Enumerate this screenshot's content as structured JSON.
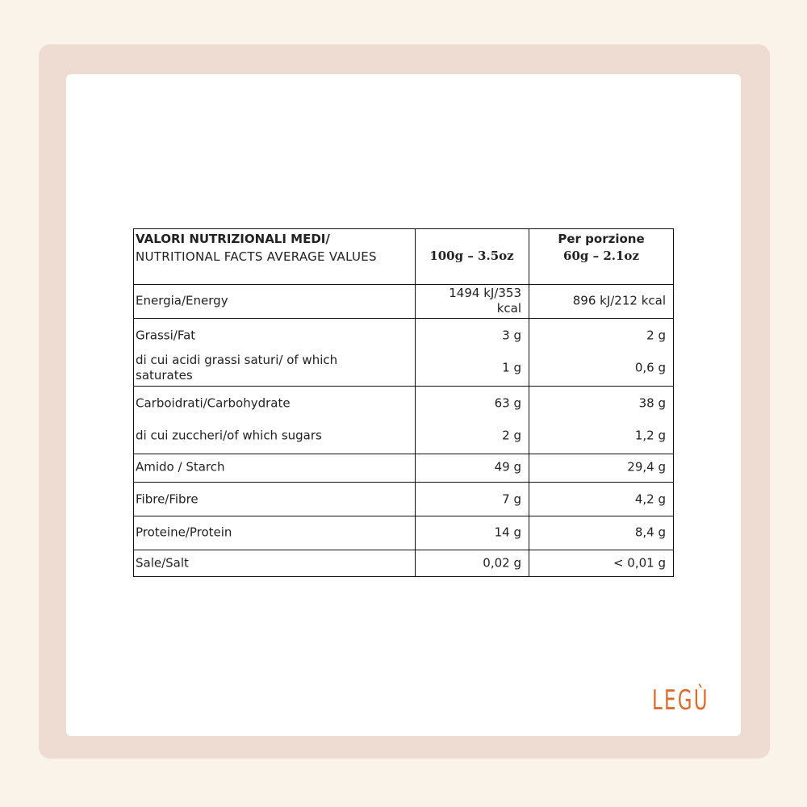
{
  "table": {
    "header": {
      "title": "VALORI NUTRIZIONALI MEDI/",
      "subtitle": "NUTRITIONAL FACTS AVERAGE VALUES",
      "col_100g": "100g – 3.5oz",
      "col_portion_line1": "Per porzione",
      "col_portion_line2": "60g – 2.1oz"
    },
    "rows": [
      {
        "label": "Energia/Energy",
        "per_100g": "1494 kJ/353 kcal",
        "per_portion": "896 kJ/212 kcal"
      },
      {
        "label": "Grassi/Fat",
        "per_100g": "3 g",
        "per_portion": "2 g"
      },
      {
        "label": "di cui acidi grassi saturi/ of which saturates",
        "per_100g": "1 g",
        "per_portion": "0,6 g"
      },
      {
        "label": "Carboidrati/Carbohydrate",
        "per_100g": "63 g",
        "per_portion": "38 g"
      },
      {
        "label": "di cui zuccheri/of which sugars",
        "per_100g": "2 g",
        "per_portion": "1,2 g"
      },
      {
        "label": "Amido / Starch",
        "per_100g": "49 g",
        "per_portion": "29,4 g"
      },
      {
        "label": "Fibre/Fibre",
        "per_100g": "7 g",
        "per_portion": "4,2 g"
      },
      {
        "label": "Proteine/Protein",
        "per_100g": "14 g",
        "per_portion": "8,4 g"
      },
      {
        "label": "Sale/Salt",
        "per_100g": "0,02 g",
        "per_portion": "< 0,01 g"
      }
    ]
  },
  "logo": "LEGÙ"
}
